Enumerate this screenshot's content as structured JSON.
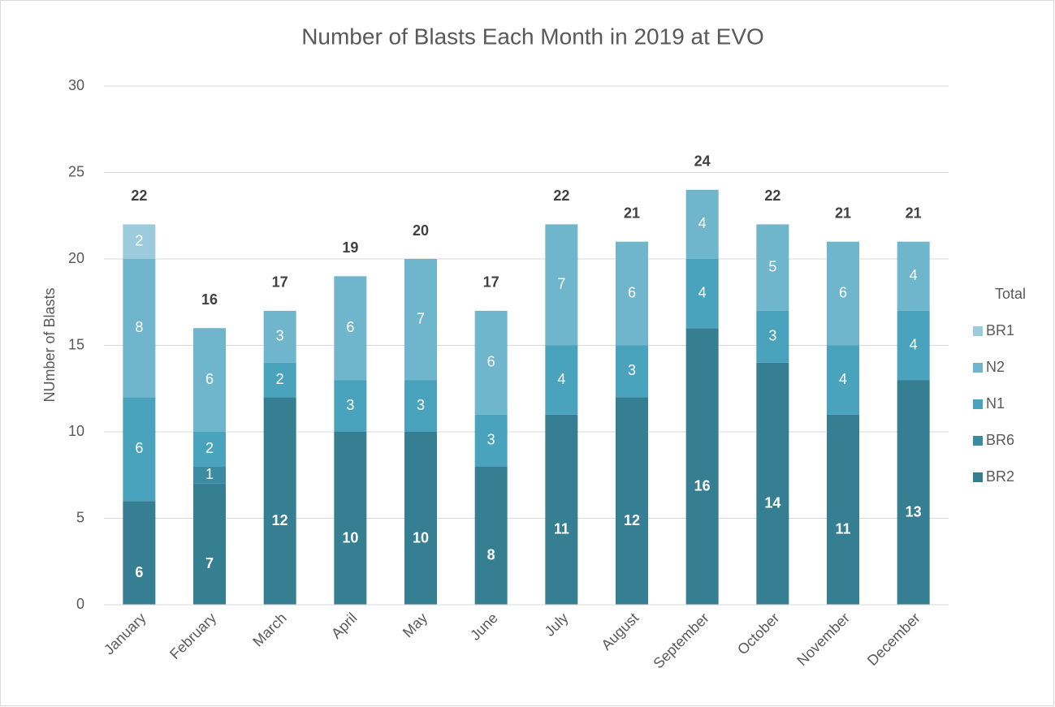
{
  "chart_data": {
    "type": "bar",
    "stacked": true,
    "title": "Number of Blasts Each Month in 2019 at EVO",
    "y_label": "NUmber of Blasts",
    "categories": [
      "January",
      "February",
      "March",
      "April",
      "May",
      "June",
      "July",
      "August",
      "September",
      "October",
      "November",
      "December"
    ],
    "series": [
      {
        "name": "BR2",
        "color": "#367e92",
        "values": [
          6,
          7,
          12,
          10,
          10,
          8,
          11,
          12,
          16,
          14,
          11,
          13
        ]
      },
      {
        "name": "BR6",
        "color": "#3b8ca3",
        "values": [
          null,
          1,
          null,
          null,
          null,
          null,
          null,
          null,
          null,
          null,
          null,
          null
        ]
      },
      {
        "name": "N1",
        "color": "#4aa3bc",
        "values": [
          6,
          2,
          2,
          3,
          3,
          3,
          4,
          3,
          4,
          3,
          4,
          4
        ]
      },
      {
        "name": "N2",
        "color": "#6fb5cb",
        "values": [
          8,
          6,
          3,
          6,
          7,
          6,
          7,
          6,
          4,
          5,
          6,
          4
        ]
      },
      {
        "name": "BR1",
        "color": "#9ccbdb",
        "values": [
          2,
          null,
          null,
          null,
          null,
          null,
          null,
          null,
          null,
          null,
          null,
          null
        ]
      },
      {
        "name": "Total",
        "values": [
          22,
          16,
          17,
          19,
          20,
          17,
          22,
          21,
          24,
          22,
          21,
          21
        ]
      }
    ],
    "ylim": [
      0,
      30
    ],
    "yticks": [
      0,
      5,
      10,
      15,
      20,
      25,
      30
    ],
    "grid": true,
    "legend": "right"
  }
}
